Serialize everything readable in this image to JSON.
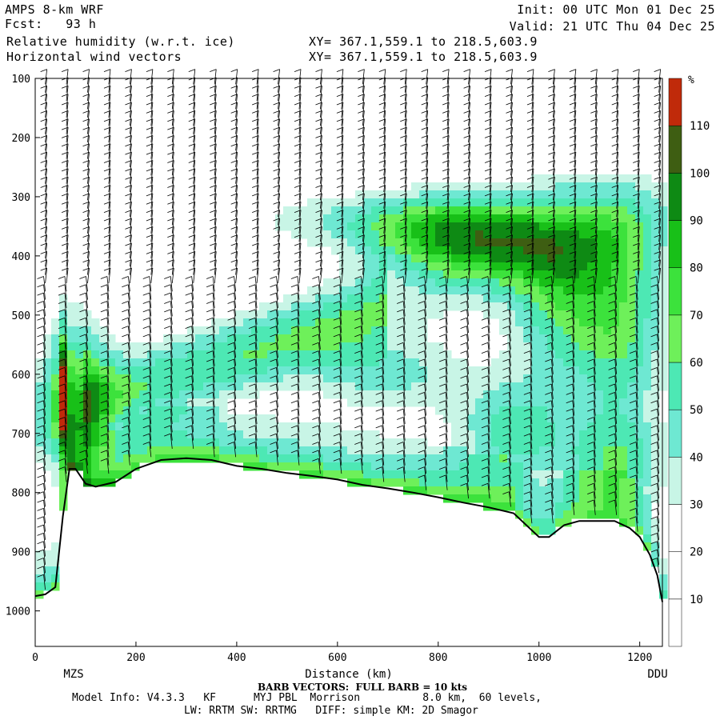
{
  "header": {
    "model": "AMPS 8-km WRF",
    "fcst": "Fcst:   93 h",
    "field1": "Relative humidity (w.r.t. ice)",
    "field2": "Horizontal wind vectors",
    "xy1": "XY= 367.1,559.1 to 218.5,603.9",
    "xy2": "XY= 367.1,559.1 to 218.5,603.9",
    "init": "Init: 00 UTC Mon 01 Dec 25",
    "valid": "Valid: 21 UTC Thu 04 Dec 25"
  },
  "footer": {
    "barb_note": "BARB VECTORS:  FULL BARB = 10 kts",
    "model_info": "Model Info: V4.3.3   KF      MYJ PBL  Morrison          8.0 km,  60 levels,",
    "physics": "LW: RRTM SW: RRTMG   DIFF: simple KM: 2D Smagor"
  },
  "chart_data": {
    "type": "heatmap",
    "xlabel": "Distance (km)",
    "ylabel": "",
    "xlim": [
      0,
      1245
    ],
    "ylim": [
      1060,
      100
    ],
    "y_scale": "pressure (hPa), decreasing upward",
    "x_ticks": [
      0,
      200,
      400,
      600,
      800,
      1000,
      1200
    ],
    "y_ticks": [
      100,
      200,
      300,
      400,
      500,
      600,
      700,
      800,
      900,
      1000
    ],
    "x_end_labels": {
      "left": "MZS",
      "right": "DDU"
    },
    "colorbar": {
      "unit": "%",
      "ticks": [
        10,
        20,
        30,
        40,
        50,
        60,
        70,
        80,
        90,
        100,
        110
      ],
      "levels": [
        {
          "min": 0,
          "color": "#ffffff"
        },
        {
          "min": 10,
          "color": "#ffffff"
        },
        {
          "min": 20,
          "color": "#ffffff"
        },
        {
          "min": 30,
          "color": "#c8f5e6"
        },
        {
          "min": 40,
          "color": "#6ee8d2"
        },
        {
          "min": 50,
          "color": "#4de8b4"
        },
        {
          "min": 60,
          "color": "#6ef05a"
        },
        {
          "min": 70,
          "color": "#3ce23c"
        },
        {
          "min": 80,
          "color": "#18c018"
        },
        {
          "min": 90,
          "color": "#0e8a14"
        },
        {
          "min": 100,
          "color": "#3e5e12"
        },
        {
          "min": 110,
          "color": "#c02a0a"
        }
      ]
    },
    "terrain_surface": {
      "x": [
        0,
        20,
        40,
        55,
        68,
        80,
        100,
        120,
        160,
        200,
        250,
        300,
        350,
        400,
        450,
        500,
        550,
        600,
        650,
        700,
        750,
        800,
        850,
        900,
        950,
        1000,
        1020,
        1050,
        1080,
        1120,
        1150,
        1180,
        1200,
        1220,
        1235,
        1245
      ],
      "p": [
        975,
        972,
        960,
        840,
        760,
        760,
        785,
        790,
        782,
        760,
        745,
        742,
        745,
        755,
        760,
        767,
        772,
        778,
        787,
        793,
        800,
        808,
        817,
        825,
        835,
        875,
        875,
        855,
        848,
        848,
        848,
        860,
        875,
        905,
        940,
        985
      ]
    }
  }
}
